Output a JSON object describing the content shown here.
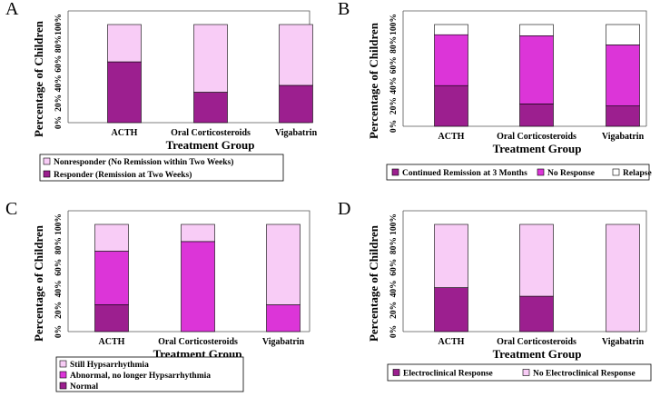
{
  "colors": {
    "dark": "#9c1f8f",
    "mid": "#dc35d8",
    "light": "#f8ccf6",
    "white": "#ffffff"
  },
  "chart_data": [
    {
      "panel": "A",
      "type": "bar",
      "stacked": true,
      "title": "",
      "xlabel": "Treatment Group",
      "ylabel": "Percentage of Children",
      "ylim": [
        0,
        100
      ],
      "yticks": [
        "0%",
        "20%",
        "40%",
        "60%",
        "80%",
        "100%"
      ],
      "categories": [
        "ACTH",
        "Oral Corticosteroids",
        "Vigabatrin"
      ],
      "series": [
        {
          "name": "Responder (Remission at Two Weeks)",
          "color": "#9c1f8f",
          "values": [
            62,
            31,
            38
          ]
        },
        {
          "name": "Nonresponder (No Remission within Two Weeks)",
          "color": "#f8ccf6",
          "values": [
            38,
            69,
            62
          ]
        }
      ],
      "legend": {
        "placement": "bottom",
        "order": [
          "Nonresponder (No Remission within Two Weeks)",
          "Responder (Remission at Two Weeks)"
        ],
        "columns": 1
      }
    },
    {
      "panel": "B",
      "type": "bar",
      "stacked": true,
      "title": "",
      "xlabel": "Treatment Group",
      "ylabel": "Percentage of Children",
      "ylim": [
        0,
        100
      ],
      "yticks": [
        "0%",
        "20%",
        "40%",
        "60%",
        "80%",
        "100%"
      ],
      "categories": [
        "ACTH",
        "Oral Corticosteroids",
        "Vigabatrin"
      ],
      "series": [
        {
          "name": "Continued Remission at 3 Months",
          "color": "#9c1f8f",
          "values": [
            40,
            22,
            20
          ]
        },
        {
          "name": "No Response",
          "color": "#dc35d8",
          "values": [
            50,
            67,
            60
          ]
        },
        {
          "name": "Relapse",
          "color": "#ffffff",
          "values": [
            10,
            11,
            20
          ]
        }
      ],
      "legend": {
        "placement": "bottom",
        "order": [
          "Continued Remission at 3 Months",
          "No Response",
          "Relapse"
        ],
        "columns": 3
      }
    },
    {
      "panel": "C",
      "type": "bar",
      "stacked": true,
      "title": "",
      "xlabel": "Treatment Group",
      "ylabel": "Percentage of Children",
      "ylim": [
        0,
        100
      ],
      "yticks": [
        "0%",
        "20%",
        "40%",
        "60%",
        "80%",
        "100%"
      ],
      "categories": [
        "ACTH",
        "Oral Corticosteroids",
        "Vigabatrin"
      ],
      "series": [
        {
          "name": "Normal",
          "color": "#9c1f8f",
          "values": [
            25,
            0,
            0
          ]
        },
        {
          "name": "Abnormal, no longer Hypsarrhythmia",
          "color": "#dc35d8",
          "values": [
            50,
            84,
            25
          ]
        },
        {
          "name": "Still Hypsarrhythmia",
          "color": "#f8ccf6",
          "values": [
            25,
            16,
            75
          ]
        }
      ],
      "legend": {
        "placement": "bottom",
        "order": [
          "Still Hypsarrhythmia",
          "Abnormal, no longer Hypsarrhythmia",
          "Normal"
        ],
        "columns": 1
      }
    },
    {
      "panel": "D",
      "type": "bar",
      "stacked": true,
      "title": "",
      "xlabel": "Treatment Group",
      "ylabel": "Percentage of Children",
      "ylim": [
        0,
        100
      ],
      "yticks": [
        "0%",
        "20%",
        "40%",
        "60%",
        "80%",
        "100%"
      ],
      "categories": [
        "ACTH",
        "Oral Corticosteroids",
        "Vigabatrin"
      ],
      "series": [
        {
          "name": "Electroclinical Response",
          "color": "#9c1f8f",
          "values": [
            41,
            33,
            0
          ]
        },
        {
          "name": "No Electroclinical Response",
          "color": "#f8ccf6",
          "values": [
            59,
            67,
            100
          ]
        }
      ],
      "legend": {
        "placement": "bottom",
        "order": [
          "Electroclinical Response",
          "No Electroclinical Response"
        ],
        "columns": 2
      }
    }
  ]
}
